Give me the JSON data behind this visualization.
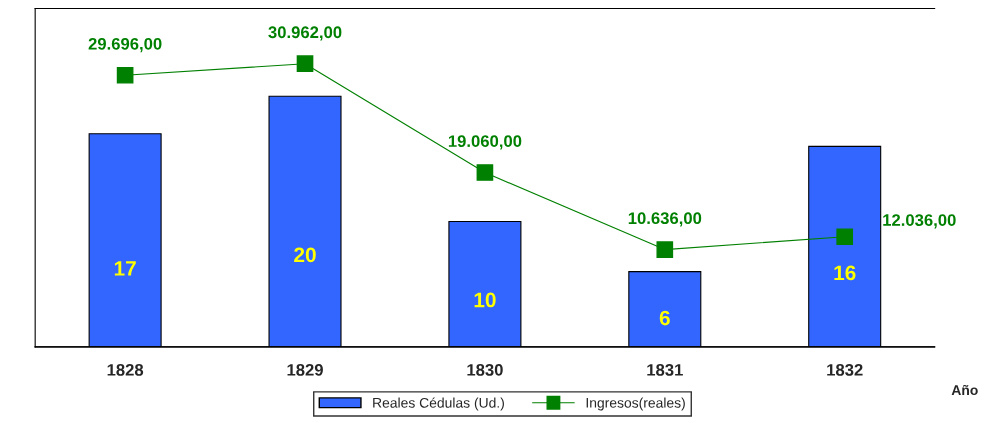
{
  "chart_data": {
    "type": "bar",
    "xlabel": "Año",
    "categories": [
      "1828",
      "1829",
      "1830",
      "1831",
      "1832"
    ],
    "ylim": [
      0,
      27
    ],
    "y2lim": [
      0,
      37000
    ],
    "tick_labels": "x",
    "legend": "bottom",
    "series": [
      {
        "name": "Reales Cédulas (Ud.)",
        "color": "#3366ff",
        "values": [
          17,
          20,
          10,
          6,
          16
        ],
        "value_labels": [
          "17",
          "20",
          "10",
          "6",
          "16"
        ]
      },
      {
        "name": "Ingresos(reales)",
        "type": "line",
        "axis": "y2",
        "color": "#008000",
        "marker": "square",
        "values": [
          29696,
          30962,
          19060,
          10636,
          12036
        ],
        "value_labels": [
          "29.696,00",
          "30.962,00",
          "19.060,00",
          "10.636,00",
          "12.036,00"
        ]
      }
    ]
  }
}
